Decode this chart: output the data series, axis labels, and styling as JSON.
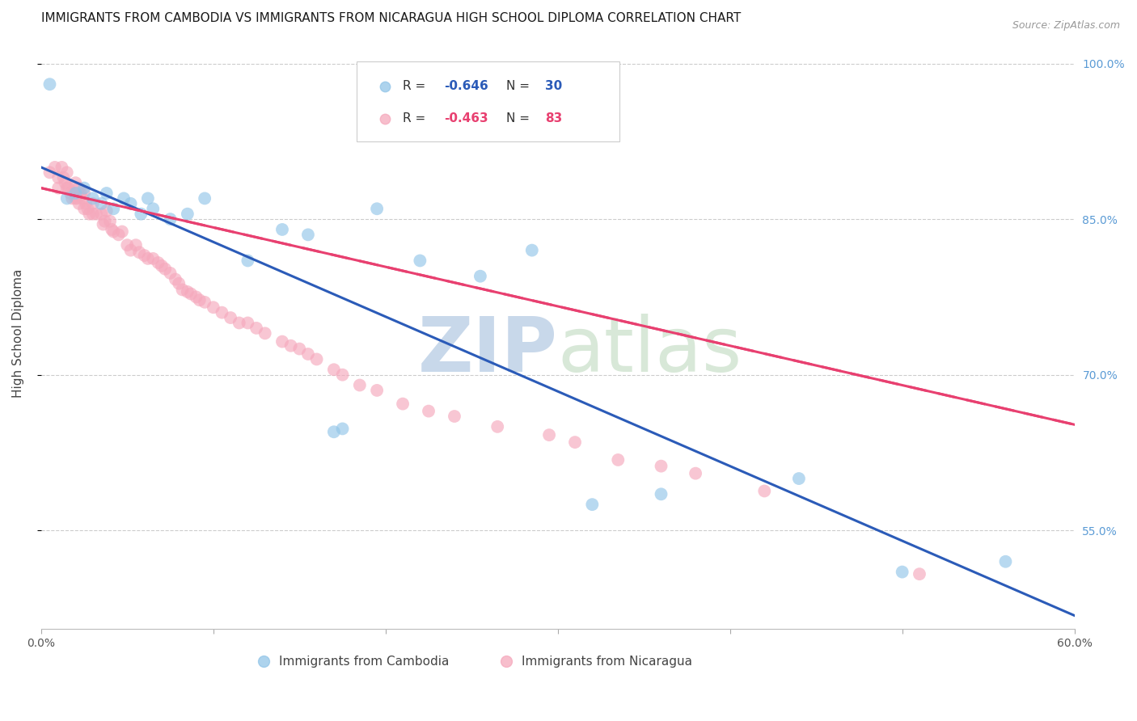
{
  "title": "IMMIGRANTS FROM CAMBODIA VS IMMIGRANTS FROM NICARAGUA HIGH SCHOOL DIPLOMA CORRELATION CHART",
  "source": "Source: ZipAtlas.com",
  "ylabel": "High School Diploma",
  "xlabel_blue": "Immigrants from Cambodia",
  "xlabel_pink": "Immigrants from Nicaragua",
  "legend_blue_R": "-0.646",
  "legend_blue_N": "30",
  "legend_pink_R": "-0.463",
  "legend_pink_N": "83",
  "watermark_zip": "ZIP",
  "watermark_atlas": "atlas",
  "xmin": 0.0,
  "xmax": 0.6,
  "ymin": 0.455,
  "ymax": 1.025,
  "ytick_positions": [
    1.0,
    0.85,
    0.7,
    0.55
  ],
  "ytick_labels": [
    "100.0%",
    "85.0%",
    "70.0%",
    "55.0%"
  ],
  "xtick_positions": [
    0.0,
    0.1,
    0.2,
    0.3,
    0.4,
    0.5,
    0.6
  ],
  "xtick_labels": [
    "0.0%",
    "",
    "",
    "",
    "",
    "",
    "60.0%"
  ],
  "color_blue": "#92C5E8",
  "color_pink": "#F5A8BC",
  "color_line_blue": "#2B5BB8",
  "color_line_pink": "#E84070",
  "blue_intercept": 0.9,
  "blue_slope": -0.72,
  "pink_intercept": 0.88,
  "pink_slope": -0.38,
  "blue_x": [
    0.005,
    0.015,
    0.02,
    0.025,
    0.03,
    0.035,
    0.038,
    0.042,
    0.048,
    0.052,
    0.058,
    0.062,
    0.065,
    0.075,
    0.085,
    0.095,
    0.12,
    0.14,
    0.155,
    0.17,
    0.175,
    0.195,
    0.22,
    0.255,
    0.285,
    0.32,
    0.36,
    0.44,
    0.5,
    0.56
  ],
  "blue_y": [
    0.98,
    0.87,
    0.875,
    0.88,
    0.87,
    0.865,
    0.875,
    0.86,
    0.87,
    0.865,
    0.855,
    0.87,
    0.86,
    0.85,
    0.855,
    0.87,
    0.81,
    0.84,
    0.835,
    0.645,
    0.648,
    0.86,
    0.81,
    0.795,
    0.82,
    0.575,
    0.585,
    0.6,
    0.51,
    0.52
  ],
  "pink_x": [
    0.005,
    0.008,
    0.01,
    0.01,
    0.012,
    0.013,
    0.014,
    0.015,
    0.015,
    0.016,
    0.017,
    0.018,
    0.019,
    0.02,
    0.02,
    0.021,
    0.022,
    0.022,
    0.023,
    0.024,
    0.025,
    0.025,
    0.026,
    0.027,
    0.028,
    0.03,
    0.03,
    0.032,
    0.035,
    0.036,
    0.037,
    0.038,
    0.04,
    0.041,
    0.042,
    0.045,
    0.047,
    0.05,
    0.052,
    0.055,
    0.057,
    0.06,
    0.062,
    0.065,
    0.068,
    0.07,
    0.072,
    0.075,
    0.078,
    0.08,
    0.082,
    0.085,
    0.087,
    0.09,
    0.092,
    0.095,
    0.1,
    0.105,
    0.11,
    0.115,
    0.12,
    0.125,
    0.13,
    0.14,
    0.145,
    0.15,
    0.155,
    0.16,
    0.17,
    0.175,
    0.185,
    0.195,
    0.21,
    0.225,
    0.24,
    0.265,
    0.295,
    0.31,
    0.335,
    0.36,
    0.38,
    0.42,
    0.51
  ],
  "pink_y": [
    0.895,
    0.9,
    0.89,
    0.88,
    0.9,
    0.89,
    0.885,
    0.88,
    0.895,
    0.88,
    0.875,
    0.87,
    0.875,
    0.885,
    0.87,
    0.87,
    0.865,
    0.88,
    0.875,
    0.87,
    0.86,
    0.875,
    0.865,
    0.86,
    0.855,
    0.855,
    0.865,
    0.855,
    0.855,
    0.845,
    0.848,
    0.858,
    0.848,
    0.84,
    0.838,
    0.835,
    0.838,
    0.825,
    0.82,
    0.825,
    0.818,
    0.815,
    0.812,
    0.812,
    0.808,
    0.805,
    0.802,
    0.798,
    0.792,
    0.788,
    0.782,
    0.78,
    0.778,
    0.775,
    0.772,
    0.77,
    0.765,
    0.76,
    0.755,
    0.75,
    0.75,
    0.745,
    0.74,
    0.732,
    0.728,
    0.725,
    0.72,
    0.715,
    0.705,
    0.7,
    0.69,
    0.685,
    0.672,
    0.665,
    0.66,
    0.65,
    0.642,
    0.635,
    0.618,
    0.612,
    0.605,
    0.588,
    0.508
  ],
  "title_fontsize": 11,
  "axis_label_fontsize": 11,
  "tick_fontsize": 10,
  "legend_fontsize": 11,
  "background_color": "#FFFFFF"
}
